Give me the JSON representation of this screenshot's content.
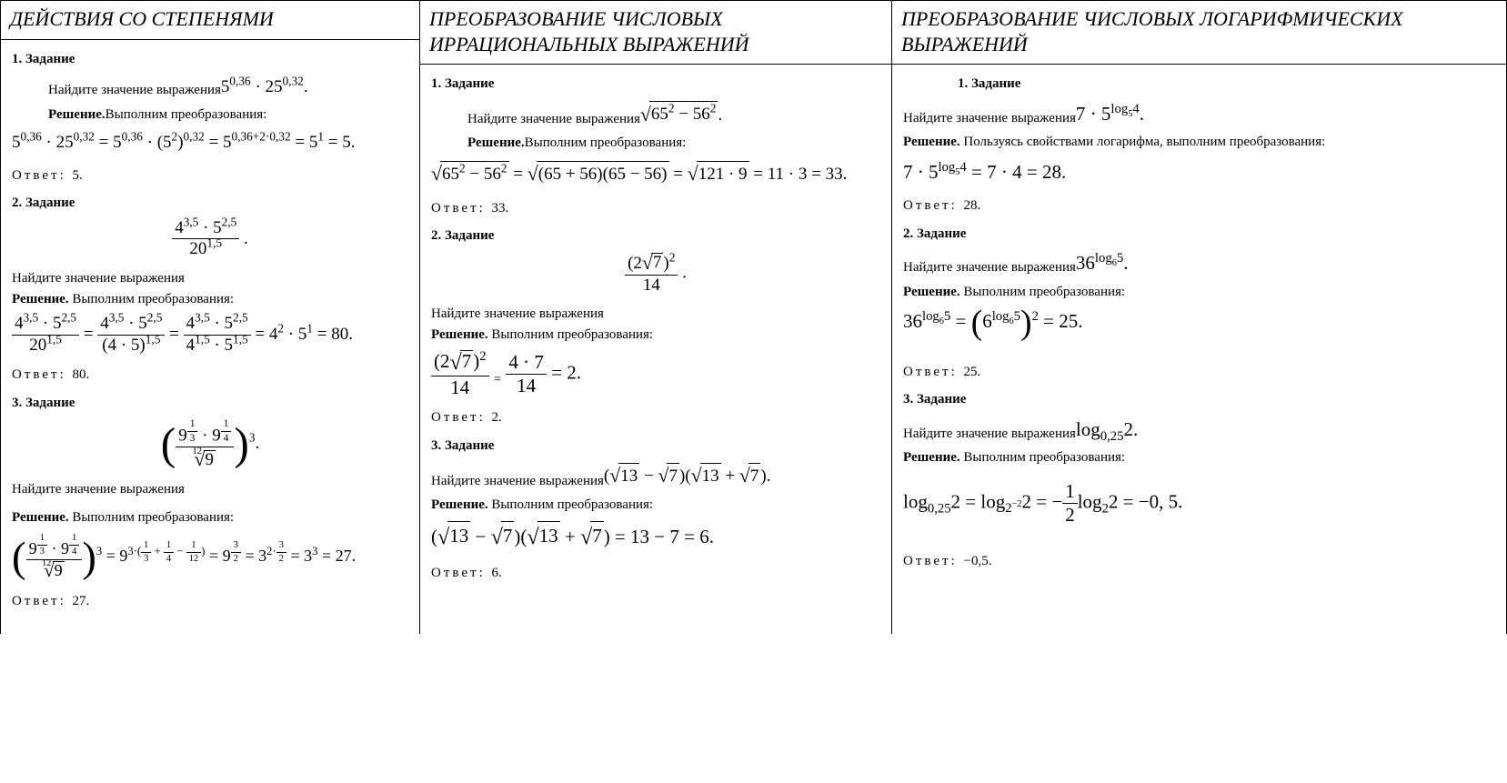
{
  "columns": [
    {
      "header": "ДЕЙСТВИЯ СО СТЕПЕНЯМИ",
      "tasks": [
        {
          "title": "1. Задание",
          "prompt": "Найдите значение выражения",
          "expr_html": "5<sup>0,36</sup> · 25<sup>0,32</sup>.",
          "solution_label": "Решение.",
          "solution_intro": " Выполним преобразования:",
          "work_html": "5<sup>0,36</sup> · 25<sup>0,32</sup> = 5<sup>0,36</sup> · (5<sup>2</sup>)<sup>0,32</sup> = 5<sup>0,36+2·0,32</sup> = 5<sup>1</sup> = 5.",
          "answer_label": "Ответ:",
          "answer": "5."
        },
        {
          "title": "2. Задание",
          "prompt": "Найдите значение выражения",
          "expr_html": "<span class='frac'><span class='num'>4<sup>3,5</sup> · 5<sup>2,5</sup></span><span class='den'>20<sup>1,5</sup></span></span> .",
          "solution_label": "Решение.",
          "solution_intro": " Выполним преобразования:",
          "work_html": "<span class='frac'><span class='num'>4<sup>3,5</sup> · 5<sup>2,5</sup></span><span class='den'>20<sup>1,5</sup></span></span> = <span class='frac'><span class='num'>4<sup>3,5</sup> · 5<sup>2,5</sup></span><span class='den'>(4 · 5)<sup>1,5</sup></span></span> = <span class='frac'><span class='num'>4<sup>3,5</sup> · 5<sup>2,5</sup></span><span class='den'>4<sup>1,5</sup> · 5<sup>1,5</sup></span></span> = 4<sup>2</sup> · 5<sup>1</sup> = 80.",
          "answer_label": "Ответ:",
          "answer": "80."
        },
        {
          "title": "3. Задание",
          "prompt": "Найдите значение выражения",
          "expr_html": "<span class='paren-huge'>(</span><span class='frac'><span class='num'>9<sup><span class='frac' style='font-size:0.85em'><span class='num'>1</span><span class='den'>3</span></span></sup> · 9<sup><span class='frac' style='font-size:0.85em'><span class='num'>1</span><span class='den'>4</span></span></sup></span><span class='den'><span class='sqrt'><span class='rootidx'>12</span><span class='rad'>9</span></span></span></span><span class='paren-huge'>)</span><sup>3</sup>.",
          "solution_label": "Решение.",
          "solution_intro": " Выполним преобразования:",
          "work_html": "<span class='paren-huge'>(</span><span class='frac'><span class='num'>9<sup><span class='frac' style='font-size:0.85em'><span class='num'>1</span><span class='den'>3</span></span></sup> · 9<sup><span class='frac' style='font-size:0.85em'><span class='num'>1</span><span class='den'>4</span></span></sup></span><span class='den'><span class='sqrt'><span class='rootidx'>12</span><span class='rad'>9</span></span></span></span><span class='paren-huge'>)</span><sup>3</sup> = 9<sup>3·(<span class='frac' style='font-size:0.85em'><span class='num'>1</span><span class='den'>3</span></span> + <span class='frac' style='font-size:0.85em'><span class='num'>1</span><span class='den'>4</span></span> − <span class='frac' style='font-size:0.85em'><span class='num'>1</span><span class='den'>12</span></span>)</sup> = 9<sup><span class='frac' style='font-size:0.85em'><span class='num'>3</span><span class='den'>2</span></span></sup> = 3<sup>2·<span class='frac' style='font-size:0.85em'><span class='num'>3</span><span class='den'>2</span></span></sup> = 3<sup>3</sup> = 27.",
          "answer_label": "Ответ:",
          "answer": "27."
        }
      ]
    },
    {
      "header": "ПРЕОБРАЗОВАНИЕ ЧИСЛОВЫХ ИРРАЦИОНАЛЬНЫХ ВЫРАЖЕНИЙ",
      "tasks": [
        {
          "title": "1. Задание",
          "prompt": "Найдите значение выражения",
          "expr_html": "<span class='sqrt'><span class='rad'>65<sup>2</sup> − 56<sup>2</sup></span></span>.",
          "solution_label": "Решение.",
          "solution_intro": " Выполним преобразования:",
          "work_html": "<span class='sqrt'><span class='rad'>65<sup>2</sup> − 56<sup>2</sup></span></span> = <span class='sqrt'><span class='rad'>(65 + 56)(65 − 56)</span></span> = <span class='sqrt'><span class='rad'>121 · 9</span></span> = 11 · 3 = 33.",
          "answer_label": "Ответ:",
          "answer": "33."
        },
        {
          "title": "2. Задание",
          "prompt": "Найдите значение выражения",
          "expr_html": "<span class='frac'><span class='num'>(2<span class='sqrt'><span class='rad'>7</span></span>)<sup>2</sup></span><span class='den'>14</span></span> .",
          "solution_label": "Решение.",
          "solution_intro": " Выполним преобразования:",
          "work_html": "<span class='frac'><span class='num'>(2<span class='sqrt'><span class='rad'>7</span></span>)<sup>2</sup></span><span class='den'>14</span></span> <sub>=</sub> <span class='frac'><span class='num'>4 · 7</span><span class='den'>14</span></span> = 2.",
          "answer_label": "Ответ:",
          "answer": "2."
        },
        {
          "title": "3. Задание",
          "prompt": "Найдите значение выражения",
          "expr_html": "(<span class='sqrt'><span class='rad'>13</span></span> − <span class='sqrt'><span class='rad'>7</span></span>)(<span class='sqrt'><span class='rad'>13</span></span> + <span class='sqrt'><span class='rad'>7</span></span>).",
          "solution_label": "Решение.",
          "solution_intro": " Выполним преобразования:",
          "work_html": "(<span class='sqrt'><span class='rad'>13</span></span> − <span class='sqrt'><span class='rad'>7</span></span>)(<span class='sqrt'><span class='rad'>13</span></span> + <span class='sqrt'><span class='rad'>7</span></span>) = 13 − 7 = 6.",
          "answer_label": "Ответ:",
          "answer": "6."
        }
      ]
    },
    {
      "header": "ПРЕОБРАЗОВАНИЕ ЧИСЛОВЫХ ЛОГАРИФМИЧЕСКИХ ВЫРАЖЕНИЙ",
      "tasks": [
        {
          "title": "1.    Задание",
          "title_indent": true,
          "prompt": "Найдите значение выражения",
          "expr_html": "7 · 5<sup>log<sub>5</sub>4</sup>.",
          "solution_label": "Решение.",
          "solution_intro": " Пользуясь свойствами логарифма, выполним преобразования:",
          "work_html": "7 · 5<sup>log<sub>5</sub>4</sup> = 7 · 4 = 28.",
          "answer_label": "Ответ:",
          "answer": "28."
        },
        {
          "title": "2. Задание",
          "prompt": "Найдите значение выражения",
          "expr_html": "36<sup>log<sub>6</sub>5</sup>.",
          "solution_label": "Решение.",
          "solution_intro": " Выполним преобразования:",
          "work_html": "36<sup>log<sub>6</sub>5</sup> = <span class='paren-big'>(</span>6<sup>log<sub>6</sub>5</sup><span class='paren-big'>)</span><sup>2</sup> = 25.",
          "answer_label": "Ответ:",
          "answer": "25."
        },
        {
          "title": "3. Задание",
          "prompt": "Найдите значение выражения",
          "expr_html": "log<sub>0,25</sub>2.",
          "solution_label": "Решение.",
          "solution_intro": " Выполним преобразования:",
          "work_html": "log<sub>0,25</sub>2 = log<sub>2<sup>−2</sup></sub>2 = −<span class='frac'><span class='num'>1</span><span class='den'>2</span></span>log<sub>2</sub>2 = −0, 5.",
          "answer_label": "Ответ:",
          "answer": "−0,5."
        }
      ]
    }
  ]
}
